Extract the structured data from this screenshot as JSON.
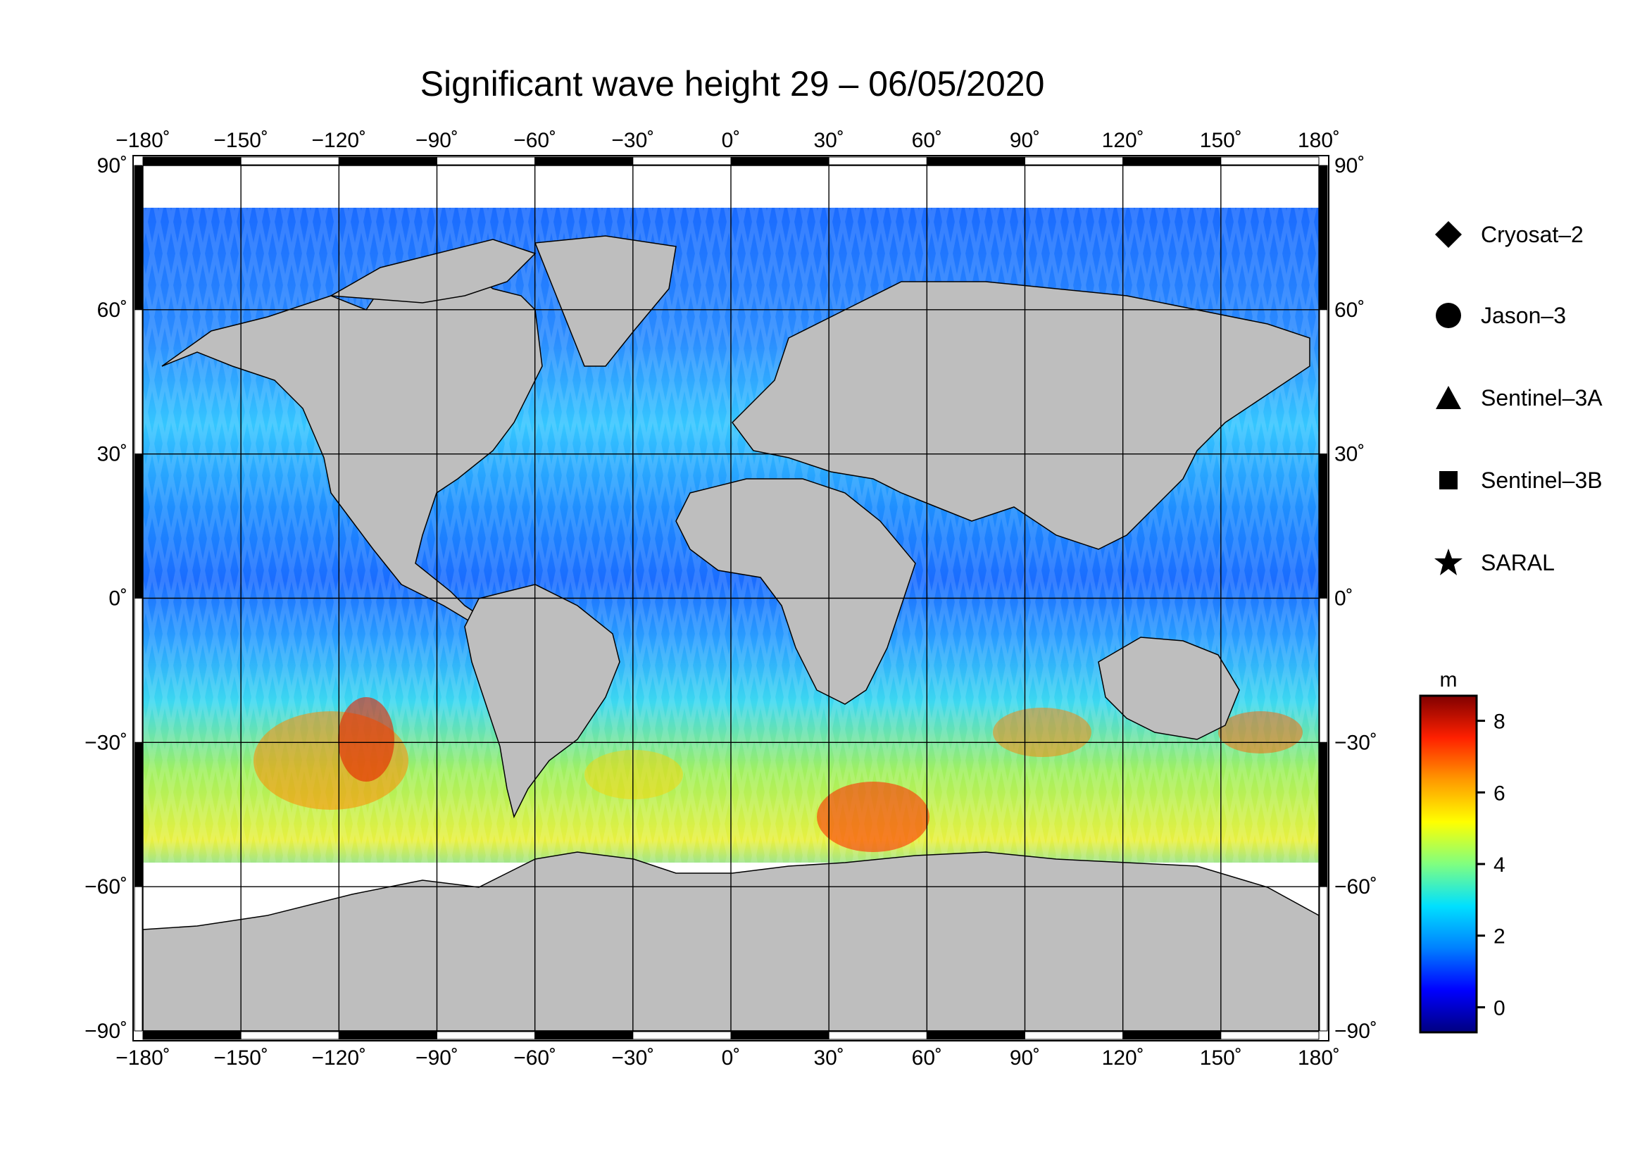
{
  "title": "Significant wave height 29 – 06/05/2020",
  "map": {
    "lon_ticks": [
      -180,
      -150,
      -120,
      -90,
      -60,
      -30,
      0,
      30,
      60,
      90,
      120,
      150,
      180
    ],
    "lat_ticks": [
      90,
      60,
      30,
      0,
      -30,
      -60,
      -90
    ],
    "degree_symbol": "˚",
    "land_color": "#bebebe",
    "ice_color": "#ffffff",
    "grid_color": "#000000"
  },
  "legend": {
    "items": [
      {
        "label": "Cryosat–2",
        "marker": "diamond"
      },
      {
        "label": "Jason–3",
        "marker": "circle"
      },
      {
        "label": "Sentinel–3A",
        "marker": "triangle"
      },
      {
        "label": "Sentinel–3B",
        "marker": "square"
      },
      {
        "label": "SARAL",
        "marker": "star"
      }
    ]
  },
  "colorbar": {
    "unit": "m",
    "ticks": [
      8,
      6,
      4,
      2,
      0
    ],
    "range": [
      -0.7,
      8.7
    ],
    "colors": [
      "#000080",
      "#0000ff",
      "#0080ff",
      "#00e0ff",
      "#80ff80",
      "#ffff00",
      "#ff9900",
      "#ff2000",
      "#800000"
    ]
  }
}
